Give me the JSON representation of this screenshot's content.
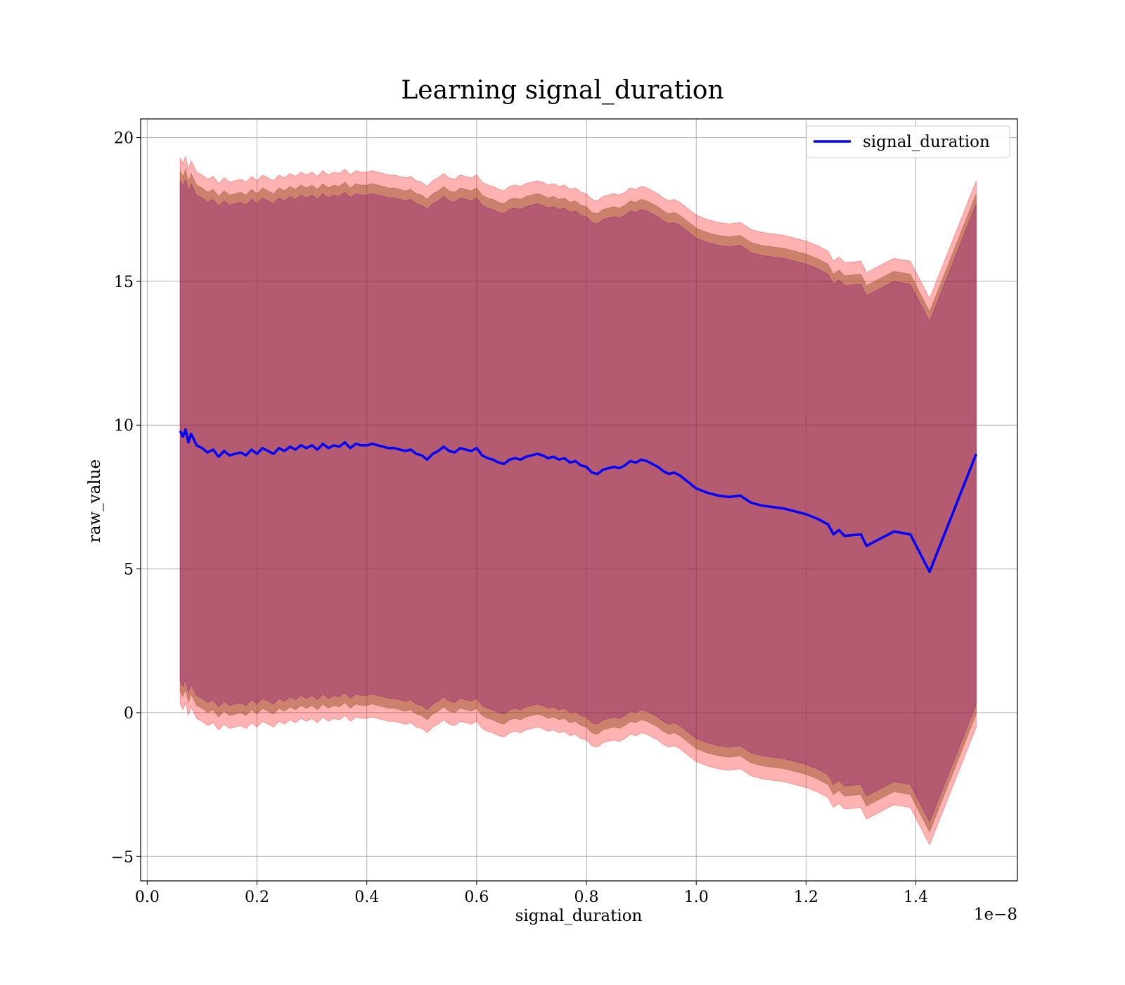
{
  "chart_data": {
    "type": "line",
    "title": "Learning signal_duration",
    "xlabel": "signal_duration",
    "ylabel": "raw_value",
    "x_offset_label": "1e−8",
    "xlim": [
      -0.012,
      1.585
    ],
    "ylim": [
      -5.85,
      20.65
    ],
    "x_ticks": [
      0.0,
      0.2,
      0.4,
      0.6,
      0.8,
      1.0,
      1.2,
      1.4
    ],
    "x_tick_labels": [
      "0.0",
      "0.2",
      "0.4",
      "0.6",
      "0.8",
      "1.0",
      "1.2",
      "1.4"
    ],
    "y_ticks": [
      -5,
      0,
      5,
      10,
      15,
      20
    ],
    "y_tick_labels": [
      "−5",
      "0",
      "5",
      "10",
      "15",
      "20"
    ],
    "grid": true,
    "legend_position": "upper right",
    "colors": {
      "line": "#0000ff",
      "outer_band": "#ff0000",
      "middle_band": "#8b4513",
      "inner_band": "#800080"
    },
    "series": [
      {
        "name": "signal_duration",
        "x": [
          0.06,
          0.065,
          0.07,
          0.075,
          0.08,
          0.09,
          0.1,
          0.11,
          0.12,
          0.13,
          0.14,
          0.15,
          0.16,
          0.17,
          0.18,
          0.19,
          0.2,
          0.21,
          0.22,
          0.23,
          0.24,
          0.25,
          0.26,
          0.27,
          0.28,
          0.29,
          0.3,
          0.31,
          0.32,
          0.33,
          0.34,
          0.35,
          0.36,
          0.37,
          0.38,
          0.39,
          0.4,
          0.41,
          0.42,
          0.43,
          0.44,
          0.45,
          0.46,
          0.47,
          0.48,
          0.49,
          0.5,
          0.51,
          0.52,
          0.53,
          0.54,
          0.55,
          0.56,
          0.57,
          0.58,
          0.59,
          0.6,
          0.61,
          0.62,
          0.63,
          0.64,
          0.65,
          0.66,
          0.67,
          0.68,
          0.69,
          0.7,
          0.71,
          0.72,
          0.73,
          0.74,
          0.75,
          0.76,
          0.77,
          0.78,
          0.79,
          0.8,
          0.81,
          0.82,
          0.83,
          0.84,
          0.85,
          0.86,
          0.87,
          0.88,
          0.89,
          0.9,
          0.91,
          0.92,
          0.93,
          0.94,
          0.95,
          0.96,
          0.97,
          0.98,
          0.99,
          1.0,
          1.02,
          1.04,
          1.06,
          1.08,
          1.1,
          1.12,
          1.14,
          1.16,
          1.18,
          1.2,
          1.22,
          1.24,
          1.25,
          1.26,
          1.27,
          1.3,
          1.31,
          1.33,
          1.36,
          1.39,
          1.425,
          1.51
        ],
        "values": [
          9.8,
          9.6,
          9.85,
          9.4,
          9.7,
          9.3,
          9.2,
          9.05,
          9.15,
          8.9,
          9.1,
          8.95,
          9.0,
          9.05,
          8.95,
          9.15,
          9.0,
          9.2,
          9.1,
          9.0,
          9.2,
          9.1,
          9.25,
          9.15,
          9.3,
          9.2,
          9.3,
          9.15,
          9.35,
          9.2,
          9.3,
          9.25,
          9.4,
          9.2,
          9.35,
          9.3,
          9.3,
          9.35,
          9.3,
          9.25,
          9.2,
          9.2,
          9.15,
          9.1,
          9.15,
          9.0,
          8.95,
          8.8,
          9.0,
          9.1,
          9.25,
          9.1,
          9.05,
          9.2,
          9.15,
          9.1,
          9.2,
          8.95,
          8.85,
          8.8,
          8.7,
          8.65,
          8.8,
          8.85,
          8.8,
          8.9,
          8.95,
          9.0,
          8.95,
          8.85,
          8.9,
          8.8,
          8.85,
          8.7,
          8.75,
          8.6,
          8.55,
          8.35,
          8.3,
          8.45,
          8.5,
          8.55,
          8.5,
          8.6,
          8.75,
          8.7,
          8.8,
          8.75,
          8.65,
          8.55,
          8.4,
          8.3,
          8.35,
          8.25,
          8.1,
          7.95,
          7.8,
          7.65,
          7.55,
          7.5,
          7.55,
          7.3,
          7.2,
          7.15,
          7.1,
          7.0,
          6.9,
          6.75,
          6.55,
          6.2,
          6.35,
          6.15,
          6.2,
          5.8,
          6.0,
          6.3,
          6.2,
          4.9,
          9.0
        ]
      }
    ],
    "bands": [
      {
        "color": "#ff0000",
        "opacity": 0.3,
        "offset": 9.5
      },
      {
        "color": "#8b4513",
        "opacity": 0.45,
        "offset": 9.05
      },
      {
        "color": "#800080",
        "opacity": 0.3,
        "offset": 8.7
      }
    ]
  }
}
